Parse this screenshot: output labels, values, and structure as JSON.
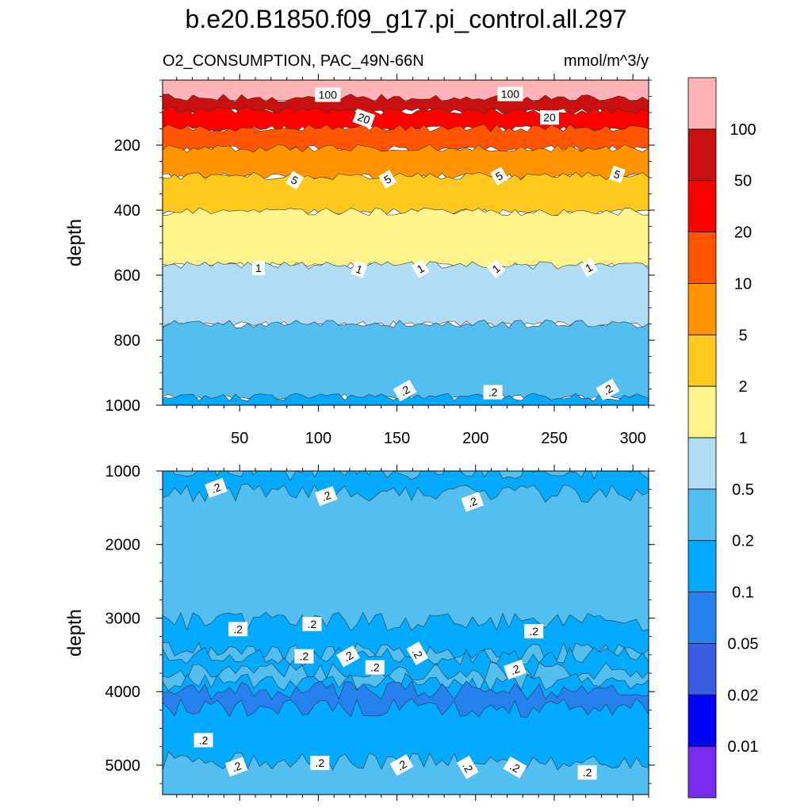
{
  "page": {
    "title": "b.e20.B1850.f09_g17.pi_control.all.297",
    "left_string": "O2_CONSUMPTION, PAC_49N-66N",
    "right_string": "mmol/m^3/y"
  },
  "chart_data": [
    {
      "type": "heatmap",
      "panel": "upper",
      "ylabel": "depth",
      "xlabel": "",
      "xlim": [
        1,
        310
      ],
      "ylim": [
        0,
        1000
      ],
      "y_reversed": true,
      "x_ticks": [
        50,
        100,
        150,
        200,
        250,
        300
      ],
      "x_tick_labels": [
        "50",
        "100",
        "150",
        "200",
        "250",
        "300"
      ],
      "y_ticks": [
        200,
        400,
        600,
        800,
        1000
      ],
      "y_tick_labels": [
        "200",
        "400",
        "600",
        "800",
        "1000"
      ],
      "layers": [
        {
          "min": 100,
          "color": "#ffb3b6",
          "bottom_depth": 55
        },
        {
          "min": 50,
          "min_label": "50",
          "color": "#c81010",
          "bottom_depth": 95
        },
        {
          "min": 20,
          "color": "#ff0000",
          "bottom_depth": 148
        },
        {
          "min": 10,
          "color": "#ff5500",
          "bottom_depth": 210
        },
        {
          "min": 5,
          "color": "#ff9400",
          "bottom_depth": 295
        },
        {
          "min": 2,
          "color": "#ffc81e",
          "bottom_depth": 405
        },
        {
          "min": 1,
          "color": "#fff38c",
          "bottom_depth": 570
        },
        {
          "min": 0.5,
          "color": "#b0dcf4",
          "bottom_depth": 750
        },
        {
          "min": 0.2,
          "color": "#53bff0",
          "bottom_depth": 975
        },
        {
          "min": 0.1,
          "color": "#04aaff",
          "bottom_depth": 1000
        }
      ],
      "contour_labels": [
        {
          "text": "100",
          "x": 106,
          "y": 45,
          "angle": 0
        },
        {
          "text": "100",
          "x": 222,
          "y": 43,
          "angle": 0
        },
        {
          "text": "20",
          "x": 129,
          "y": 118,
          "angle": 20
        },
        {
          "text": "20",
          "x": 247,
          "y": 115,
          "angle": 0
        },
        {
          "text": "5",
          "x": 85,
          "y": 308,
          "angle": 30
        },
        {
          "text": "5",
          "x": 144,
          "y": 305,
          "angle": -30
        },
        {
          "text": "5",
          "x": 215,
          "y": 295,
          "angle": -30
        },
        {
          "text": "5",
          "x": 290,
          "y": 290,
          "angle": 20
        },
        {
          "text": "1",
          "x": 62,
          "y": 578,
          "angle": 0
        },
        {
          "text": "1",
          "x": 126,
          "y": 582,
          "angle": 20
        },
        {
          "text": "1",
          "x": 165,
          "y": 580,
          "angle": -30
        },
        {
          "text": "1",
          "x": 213,
          "y": 580,
          "angle": -40
        },
        {
          "text": "1",
          "x": 272,
          "y": 577,
          "angle": -30
        },
        {
          "text": ".2",
          "x": 155,
          "y": 955,
          "angle": -30
        },
        {
          "text": ".2",
          "x": 211,
          "y": 960,
          "angle": 0
        },
        {
          "text": ".2",
          "x": 284,
          "y": 952,
          "angle": -30
        }
      ]
    },
    {
      "type": "heatmap",
      "panel": "lower",
      "ylabel": "depth",
      "xlabel": "",
      "xlim": [
        1,
        310
      ],
      "ylim": [
        1000,
        5400
      ],
      "y_reversed": true,
      "y_ticks": [
        1000,
        2000,
        3000,
        4000,
        5000
      ],
      "y_tick_labels": [
        "1000",
        "2000",
        "3000",
        "4000",
        "5000"
      ],
      "background_color": "#53bff0",
      "bands": [
        {
          "min": 0.1,
          "color": "#04aaff",
          "top_depth": 1000,
          "bottom_depth": 1300
        },
        {
          "min": 0.1,
          "color": "#04aaff",
          "top_depth": 3050,
          "bottom_depth": 3460
        },
        {
          "min": 0.1,
          "color": "#04aaff",
          "top_depth": 3520,
          "bottom_depth": 3720
        },
        {
          "min": 0.1,
          "color": "#04aaff",
          "top_depth": 3870,
          "bottom_depth": 4940
        },
        {
          "min": 0.05,
          "color": "#2680ee",
          "top_depth": 3980,
          "bottom_depth": 4220
        }
      ],
      "contour_labels": [
        {
          "text": ".2",
          "x": 35,
          "y": 1230,
          "angle": -20
        },
        {
          "text": ".2",
          "x": 105,
          "y": 1340,
          "angle": -20
        },
        {
          "text": ".2",
          "x": 198,
          "y": 1420,
          "angle": -20
        },
        {
          "text": ".2",
          "x": 49,
          "y": 3150,
          "angle": 0
        },
        {
          "text": ".2",
          "x": 96,
          "y": 3080,
          "angle": 0
        },
        {
          "text": ".2",
          "x": 91,
          "y": 3520,
          "angle": 0
        },
        {
          "text": ".2",
          "x": 119,
          "y": 3520,
          "angle": -30
        },
        {
          "text": ".2",
          "x": 136,
          "y": 3670,
          "angle": 0
        },
        {
          "text": ".2",
          "x": 163,
          "y": 3480,
          "angle": 60
        },
        {
          "text": ".2",
          "x": 237,
          "y": 3180,
          "angle": 0
        },
        {
          "text": ".2",
          "x": 225,
          "y": 3700,
          "angle": -20
        },
        {
          "text": ".2",
          "x": 27,
          "y": 4660,
          "angle": 0
        },
        {
          "text": ".2",
          "x": 48,
          "y": 5020,
          "angle": -20
        },
        {
          "text": ".2",
          "x": 101,
          "y": 4970,
          "angle": 0
        },
        {
          "text": ".2",
          "x": 153,
          "y": 5000,
          "angle": -30
        },
        {
          "text": ".2",
          "x": 195,
          "y": 5030,
          "angle": 60
        },
        {
          "text": ".2",
          "x": 225,
          "y": 5030,
          "angle": 30
        },
        {
          "text": ".2",
          "x": 271,
          "y": 5100,
          "angle": 0
        }
      ]
    }
  ],
  "colorbar": {
    "colors": [
      "#ffb3b6",
      "#c81010",
      "#ff0000",
      "#ff5500",
      "#ff9400",
      "#ffc81e",
      "#fff38c",
      "#b0dcf4",
      "#53bff0",
      "#04aaff",
      "#2680ee",
      "#3a5ce0",
      "#0000ff",
      "#7a2bf0"
    ],
    "labels": [
      "100",
      "50",
      "20",
      "10",
      "5",
      "2",
      "1",
      "0.5",
      "0.2",
      "0.1",
      "0.05",
      "0.02",
      "0.01"
    ]
  }
}
